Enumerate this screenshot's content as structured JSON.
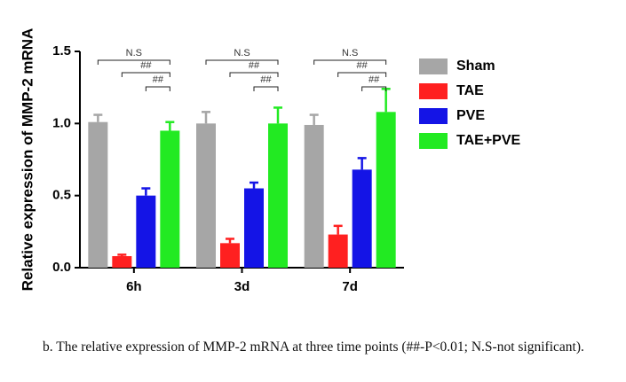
{
  "chart_data": {
    "type": "bar",
    "ylabel": "Relative expression of MMP-2 mRNA",
    "categories": [
      "6h",
      "3d",
      "7d"
    ],
    "series": [
      {
        "name": "Sham",
        "color": "#a6a6a6",
        "values": [
          1.01,
          1.0,
          0.99
        ],
        "errors": [
          0.05,
          0.08,
          0.07
        ]
      },
      {
        "name": "TAE",
        "color": "#ff2020",
        "values": [
          0.08,
          0.17,
          0.23
        ],
        "errors": [
          0.01,
          0.03,
          0.06
        ]
      },
      {
        "name": "PVE",
        "color": "#1414e6",
        "values": [
          0.5,
          0.55,
          0.68
        ],
        "errors": [
          0.05,
          0.04,
          0.08
        ]
      },
      {
        "name": "TAE+PVE",
        "color": "#22ea22",
        "values": [
          0.95,
          1.0,
          1.08
        ],
        "errors": [
          0.06,
          0.11,
          0.16
        ]
      }
    ],
    "annotations": [
      [
        "N.S",
        "##",
        "##"
      ],
      [
        "N.S",
        "##",
        "##"
      ],
      [
        "N.S",
        "##",
        "##"
      ]
    ],
    "ylim": [
      0,
      1.5
    ],
    "yticks": [
      {
        "value": 0,
        "label": "0.0"
      },
      0.5,
      {
        "value": 1,
        "label": "1.0"
      },
      {
        "value": 1.5,
        "label": "1.5"
      }
    ],
    "legend": "right"
  },
  "caption": "b. The relative expression of MMP-2 mRNA at three time points (##-P<0.01; N.S-not significant)."
}
